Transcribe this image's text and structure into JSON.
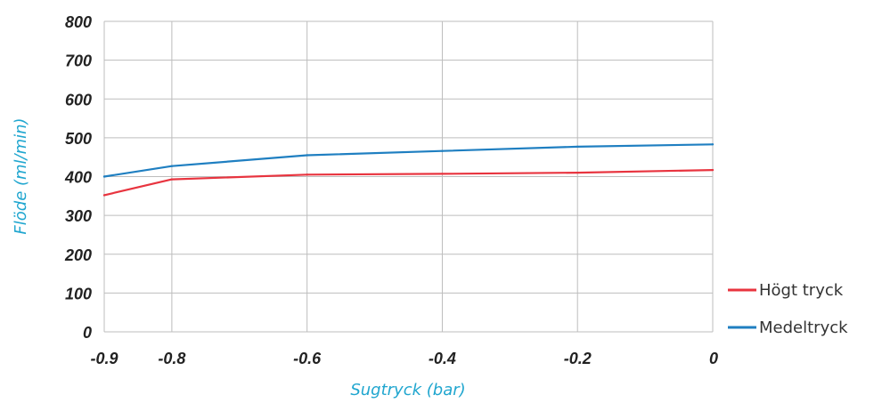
{
  "chart_data": {
    "type": "line",
    "title": "",
    "xlabel": "Sugtryck (bar)",
    "ylabel": "Flöde (ml/min)",
    "xlim": [
      -0.9,
      0
    ],
    "ylim": [
      0,
      800
    ],
    "x_ticks": [
      "-0.9",
      "-0.8",
      "-0.6",
      "-0.4",
      "-0.2",
      "0"
    ],
    "y_ticks": [
      "0",
      "100",
      "200",
      "300",
      "400",
      "500",
      "600",
      "700",
      "800"
    ],
    "grid": true,
    "legend_position": "bottom-right",
    "series": [
      {
        "name": "Högt tryck",
        "color": "#e8343f",
        "x": [
          -0.9,
          -0.8,
          -0.6,
          -0.4,
          -0.2,
          0
        ],
        "y": [
          352,
          393,
          405,
          407,
          410,
          417
        ]
      },
      {
        "name": "Medeltryck",
        "color": "#1f7fc1",
        "x": [
          -0.9,
          -0.8,
          -0.6,
          -0.4,
          -0.2,
          0
        ],
        "y": [
          400,
          427,
          455,
          466,
          477,
          483
        ]
      }
    ],
    "axis_title_color": "#20a6cf",
    "grid_color": "#bdbdbd"
  }
}
